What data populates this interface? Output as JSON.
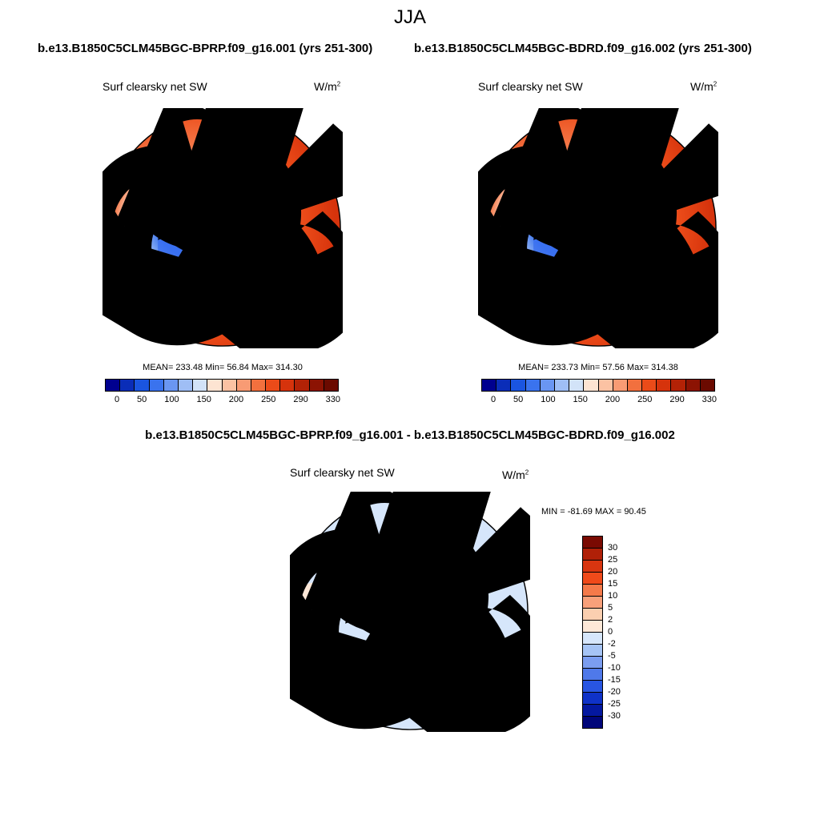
{
  "season": "JJA",
  "case1": "b.e13.B1850C5CLM45BGC-BPRP.f09_g16.001 (yrs 251-300)",
  "case2": "b.e13.B1850C5CLM45BGC-BDRD.f09_g16.002 (yrs 251-300)",
  "diff_title": "b.e13.B1850C5CLM45BGC-BPRP.f09_g16.001 - b.e13.B1850C5CLM45BGC-BDRD.f09_g16.002",
  "panels": [
    {
      "title": "Surf clearsky net SW",
      "units": "W/m",
      "units_sup": "2",
      "stats": "MEAN= 233.48  Min=  56.84  Max= 314.30"
    },
    {
      "title": "Surf clearsky net SW",
      "units": "W/m",
      "units_sup": "2",
      "stats": "MEAN= 233.73  Min=  57.56  Max= 314.38"
    },
    {
      "title": "Surf clearsky net SW",
      "units": "W/m",
      "units_sup": "2",
      "stats": "MIN = -81.69 MAX =  90.45"
    }
  ],
  "colorbar_main": {
    "labels": [
      "0",
      "50",
      "100",
      "150",
      "200",
      "250",
      "290",
      "330"
    ],
    "colors": [
      "#00008f",
      "#0a2db8",
      "#1a55e0",
      "#3a73ee",
      "#6a96f2",
      "#9fbef5",
      "#d2e3f8",
      "#fde4d2",
      "#fbc2a3",
      "#f89b74",
      "#f2703e",
      "#eb4b19",
      "#d6330c",
      "#b32206",
      "#8c1303",
      "#6b0a00"
    ]
  },
  "colorbar_diff": {
    "labels": [
      "30",
      "25",
      "20",
      "15",
      "10",
      "5",
      "2",
      "0",
      "-2",
      "-5",
      "-10",
      "-15",
      "-20",
      "-25",
      "-30"
    ],
    "colors": [
      "#7a0a02",
      "#b02008",
      "#d83510",
      "#f04a1a",
      "#f57a4a",
      "#f8a07a",
      "#fbcfb0",
      "#fde8d8",
      "#d6e6fb",
      "#a6c4f5",
      "#7b9df0",
      "#4f79ea",
      "#2855e2",
      "#0f32c8",
      "#0418a0",
      "#00067a"
    ]
  },
  "chart_data": [
    {
      "type": "heatmap",
      "title": "Surf clearsky net SW",
      "projection": "north polar stereographic",
      "units": "W/m2",
      "mean": 233.48,
      "min": 56.84,
      "max": 314.3,
      "levels": [
        0,
        50,
        100,
        150,
        200,
        250,
        290,
        330
      ]
    },
    {
      "type": "heatmap",
      "title": "Surf clearsky net SW",
      "projection": "north polar stereographic",
      "units": "W/m2",
      "mean": 233.73,
      "min": 57.56,
      "max": 314.38,
      "levels": [
        0,
        50,
        100,
        150,
        200,
        250,
        290,
        330
      ]
    },
    {
      "type": "heatmap",
      "title": "Surf clearsky net SW (difference)",
      "projection": "north polar stereographic",
      "units": "W/m2",
      "min": -81.69,
      "max": 90.45,
      "levels": [
        -30,
        -25,
        -20,
        -15,
        -10,
        -5,
        -2,
        0,
        2,
        5,
        10,
        15,
        20,
        25,
        30
      ]
    }
  ]
}
